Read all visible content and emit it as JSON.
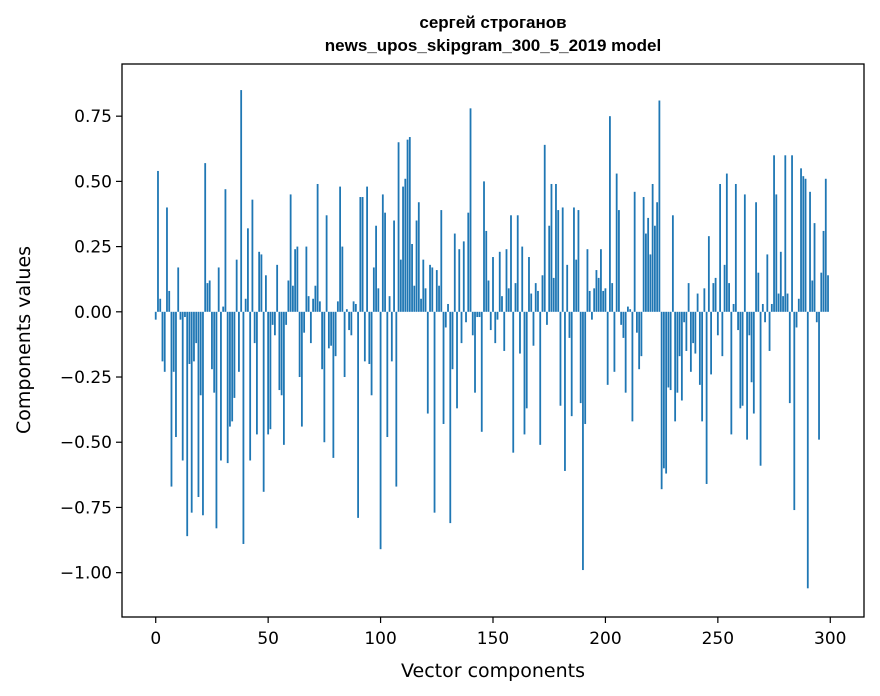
{
  "chart_data": {
    "type": "bar",
    "title": "сергей строганов",
    "subtitle": "news_upos_skipgram_300_5_2019 model",
    "xlabel": "Vector components",
    "ylabel": "Components values",
    "xlim": [
      -15,
      315
    ],
    "ylim": [
      -1.17,
      0.95
    ],
    "xticks": [
      0,
      50,
      100,
      150,
      200,
      250,
      300
    ],
    "xtick_labels": [
      "0",
      "50",
      "100",
      "150",
      "200",
      "250",
      "300"
    ],
    "yticks": [
      0.75,
      0.5,
      0.25,
      0.0,
      -0.25,
      -0.5,
      -0.75,
      -1.0
    ],
    "ytick_labels": [
      "0.75",
      "0.50",
      "0.25",
      "0.00",
      "−0.25",
      "−0.50",
      "−0.75",
      "−1.00"
    ],
    "grid": false,
    "bar_color": "#1f77b4",
    "values": [
      -0.03,
      0.54,
      0.05,
      -0.19,
      -0.23,
      0.4,
      0.08,
      -0.67,
      -0.23,
      -0.48,
      0.17,
      -0.03,
      -0.57,
      -0.02,
      -0.86,
      -0.2,
      -0.77,
      -0.19,
      -0.12,
      -0.71,
      -0.32,
      -0.78,
      0.57,
      0.11,
      0.12,
      -0.22,
      -0.31,
      -0.83,
      0.17,
      -0.57,
      0.02,
      0.47,
      -0.58,
      -0.44,
      -0.42,
      -0.33,
      0.2,
      -0.23,
      0.85,
      -0.89,
      0.05,
      0.32,
      -0.57,
      0.43,
      -0.12,
      -0.47,
      0.23,
      0.22,
      -0.69,
      0.14,
      -0.47,
      -0.45,
      -0.05,
      -0.09,
      0.18,
      -0.3,
      -0.32,
      -0.51,
      -0.05,
      0.12,
      0.45,
      0.1,
      0.24,
      0.25,
      -0.25,
      -0.44,
      -0.08,
      0.25,
      0.06,
      -0.12,
      0.05,
      0.1,
      0.49,
      0.04,
      -0.22,
      -0.5,
      0.37,
      -0.14,
      -0.13,
      -0.56,
      -0.17,
      0.04,
      0.48,
      0.25,
      -0.25,
      0.01,
      -0.07,
      -0.09,
      0.04,
      0.03,
      -0.79,
      0.44,
      0.44,
      -0.19,
      0.48,
      -0.2,
      -0.32,
      0.17,
      0.33,
      0.09,
      -0.91,
      0.45,
      0.38,
      -0.48,
      0.06,
      -0.19,
      0.35,
      -0.67,
      0.65,
      0.2,
      0.48,
      0.51,
      0.66,
      0.67,
      0.26,
      0.1,
      0.35,
      0.42,
      0.05,
      0.2,
      0.09,
      -0.39,
      0.18,
      0.17,
      -0.77,
      0.16,
      0.1,
      0.39,
      -0.43,
      -0.06,
      0.03,
      -0.81,
      -0.22,
      0.3,
      -0.37,
      0.24,
      -0.12,
      0.27,
      -0.04,
      0.38,
      0.78,
      -0.09,
      -0.31,
      -0.02,
      -0.02,
      -0.46,
      0.5,
      0.31,
      0.12,
      -0.07,
      0.21,
      -0.12,
      -0.03,
      0.23,
      0.06,
      -0.15,
      0.24,
      0.09,
      0.37,
      -0.54,
      0.11,
      0.37,
      -0.16,
      0.25,
      -0.47,
      -0.37,
      0.21,
      0.07,
      -0.13,
      0.11,
      0.08,
      -0.51,
      0.14,
      0.64,
      -0.05,
      0.33,
      0.49,
      0.13,
      0.49,
      0.39,
      -0.36,
      0.4,
      -0.61,
      0.18,
      -0.1,
      -0.4,
      0.4,
      0.2,
      0.39,
      -0.35,
      -0.99,
      -0.43,
      0.24,
      0.08,
      -0.03,
      0.09,
      0.16,
      0.13,
      0.24,
      0.08,
      0.09,
      -0.28,
      0.75,
      0.11,
      -0.23,
      0.53,
      0.39,
      -0.05,
      -0.1,
      -0.31,
      0.02,
      0.01,
      -0.42,
      0.46,
      -0.08,
      -0.22,
      -0.17,
      0.44,
      0.3,
      0.36,
      0.22,
      0.49,
      0.33,
      0.42,
      0.81,
      -0.68,
      -0.6,
      -0.62,
      -0.29,
      -0.3,
      0.37,
      -0.42,
      -0.31,
      -0.17,
      -0.34,
      -0.04,
      -0.15,
      0.11,
      -0.23,
      -0.12,
      -0.16,
      0.07,
      -0.28,
      -0.42,
      0.09,
      -0.66,
      0.29,
      -0.24,
      0.11,
      0.13,
      -0.09,
      0.49,
      -0.17,
      0.18,
      0.53,
      0.11,
      -0.47,
      0.03,
      0.49,
      -0.07,
      -0.37,
      -0.36,
      0.45,
      -0.49,
      -0.09,
      -0.27,
      -0.39,
      0.42,
      0.15,
      -0.59,
      0.03,
      -0.04,
      0.22,
      -0.15,
      0.03,
      0.6,
      0.45,
      0.07,
      0.23,
      0.06,
      0.6,
      0.07,
      -0.35,
      0.6,
      -0.76,
      -0.06,
      0.05,
      0.55,
      0.52,
      0.51,
      -1.06,
      0.46,
      0.12,
      0.34,
      -0.04,
      -0.49,
      0.15,
      0.31,
      0.51,
      0.14
    ]
  }
}
